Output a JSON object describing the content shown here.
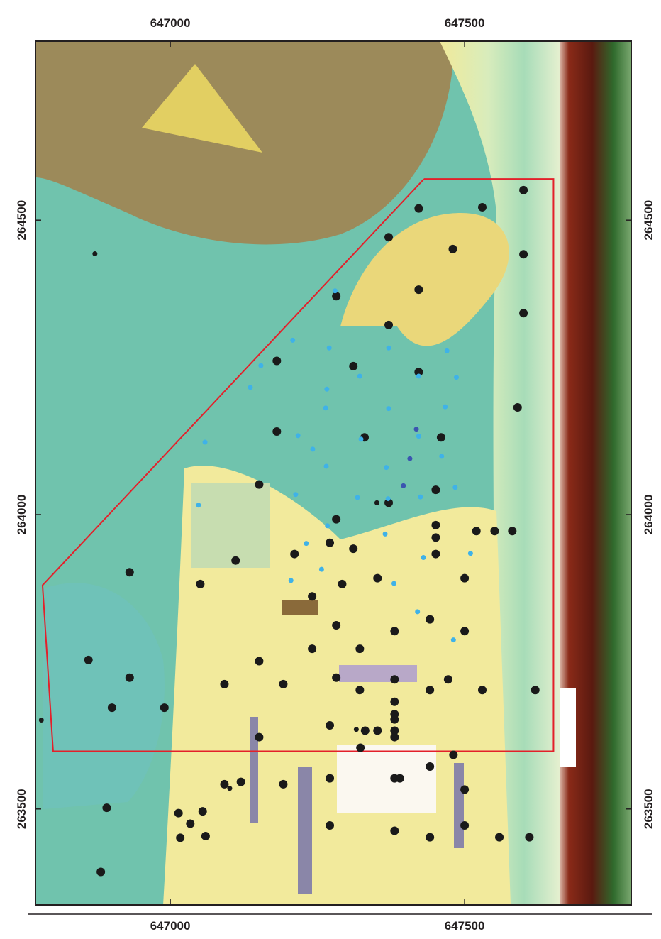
{
  "chart_data": {
    "type": "scatter",
    "xlim": [
      646771,
      647783
    ],
    "ylim": [
      263337,
      264804
    ],
    "xticks": [
      647000,
      647500
    ],
    "yticks": [
      263500,
      264000,
      264500
    ],
    "boundary": {
      "color": "#e3202a",
      "x": [
        647431,
        647651,
        647651,
        646801,
        646783,
        647431
      ],
      "y": [
        264570,
        264570,
        263598,
        263598,
        263880,
        264570
      ]
    },
    "series": [
      {
        "color": "#1a1a1a",
        "x": [
          647600,
          647422,
          647530,
          647371,
          647480,
          647600,
          647282,
          647422,
          647600,
          647371,
          647181,
          647311,
          647422,
          647590,
          647181,
          647330,
          647460,
          647151,
          647451,
          647371,
          647282,
          647451,
          647451,
          647520,
          647551,
          647581,
          647271,
          647311,
          647211,
          647451,
          647111,
          646931,
          647352,
          647500,
          647051,
          647292,
          647241,
          647441,
          647282,
          647381,
          647500,
          647241,
          647322,
          646861,
          647151,
          646931,
          647282,
          647472,
          647092,
          647192,
          647381,
          647322,
          647441,
          647530,
          647620,
          646901,
          646990,
          647381,
          647381,
          647381,
          647271,
          647331,
          647151,
          647381,
          647481,
          647441,
          647120,
          647092,
          647192,
          647271,
          647381,
          647390,
          647500,
          646892,
          647014,
          647055,
          647034,
          647271,
          647381,
          647500,
          647017,
          647060,
          647441,
          647559,
          647610,
          646882,
          647381,
          647323,
          647352
        ],
        "y": [
          264551,
          264520,
          264522,
          264471,
          264451,
          264442,
          264371,
          264382,
          264342,
          264322,
          264261,
          264252,
          264242,
          264182,
          264141,
          264131,
          264131,
          264051,
          264042,
          264020,
          263992,
          263982,
          263961,
          263972,
          263972,
          263972,
          263952,
          263942,
          263933,
          263933,
          263922,
          263902,
          263892,
          263892,
          263882,
          263882,
          263861,
          263822,
          263812,
          263802,
          263802,
          263772,
          263772,
          263753,
          263751,
          263723,
          263723,
          263720,
          263712,
          263712,
          263720,
          263702,
          263702,
          263702,
          263702,
          263672,
          263672,
          263682,
          263661,
          263652,
          263642,
          263633,
          263622,
          263633,
          263592,
          263572,
          263546,
          263542,
          263542,
          263552,
          263552,
          263552,
          263533,
          263502,
          263493,
          263496,
          263475,
          263472,
          263463,
          263472,
          263451,
          263454,
          263452,
          263452,
          263452,
          263393,
          263622,
          263604,
          263633
        ]
      },
      {
        "color": "#1a1a1a",
        "x": [
          646872,
          646781,
          647101,
          647351,
          647316
        ],
        "y": [
          264443,
          263651,
          263535,
          264020,
          263635
        ]
      },
      {
        "color": "#3fb2e8",
        "x": [
          647280,
          647208,
          647270,
          647371,
          647470,
          647154,
          647322,
          647422,
          647486,
          647136,
          647266,
          647264,
          647371,
          647467,
          647217,
          647324,
          647059,
          647422,
          647242,
          647461,
          647265,
          647367,
          647213,
          647318,
          647425,
          647484,
          647048,
          647370,
          647267,
          647231,
          647365,
          647430,
          647510,
          647257,
          647205,
          647380,
          647420,
          647481
        ],
        "y": [
          264380,
          264296,
          264283,
          264283,
          264278,
          264253,
          264235,
          264235,
          264233,
          264216,
          264213,
          264181,
          264180,
          264183,
          264134,
          264128,
          264123,
          264133,
          264111,
          264099,
          264082,
          264080,
          264034,
          264029,
          264030,
          264046,
          264016,
          264027,
          263981,
          263951,
          263967,
          263927,
          263934,
          263907,
          263888,
          263883,
          263835,
          263787
        ]
      },
      {
        "color": "#3b55b0",
        "x": [
          647418,
          647407,
          647396
        ],
        "y": [
          264145,
          264095,
          264049
        ]
      }
    ]
  }
}
